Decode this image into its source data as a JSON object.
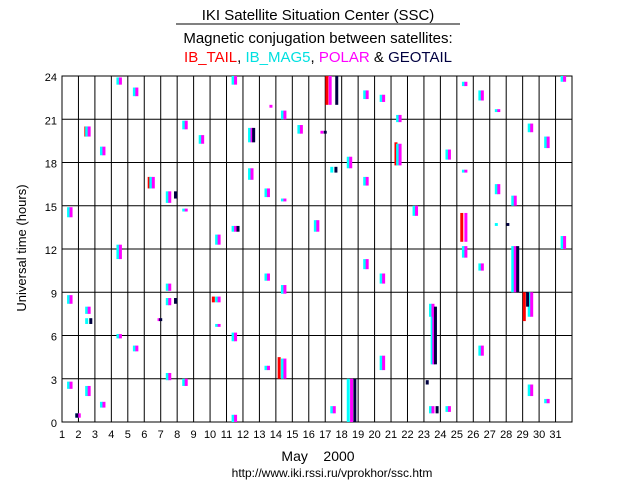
{
  "chart_data": {
    "type": "scatter",
    "title": "IKI Satellite Situation Center (SSC)",
    "subtitle": "Magnetic conjugation between satellites:",
    "legend": {
      "items": [
        {
          "label": "IB_TAIL",
          "color": "#ff0000"
        },
        {
          "label": "IB_MAG5",
          "color": "#00ffff"
        },
        {
          "label": "POLAR",
          "color": "#ff00ff"
        },
        {
          "label": "GEOTAIL",
          "color": "#000040"
        }
      ],
      "separator": ",",
      "conjunction": "&",
      "placement": "top-center"
    },
    "xlabel": "May    2000",
    "ylabel": "Universal time (hours)",
    "footer": "http://www.iki.rssi.ru/vprokhor/ssc.htm",
    "xlim": [
      1,
      32
    ],
    "ylim": [
      0,
      24
    ],
    "x_ticks": [
      "1",
      "2",
      "3",
      "4",
      "5",
      "6",
      "7",
      "8",
      "9",
      "10",
      "11",
      "12",
      "13",
      "14",
      "15",
      "16",
      "17",
      "18",
      "19",
      "20",
      "21",
      "22",
      "23",
      "24",
      "25",
      "26",
      "27",
      "28",
      "29",
      "30",
      "31"
    ],
    "y_ticks": [
      "0",
      "3",
      "6",
      "9",
      "12",
      "15",
      "18",
      "21",
      "24"
    ],
    "grid": true,
    "series": [
      {
        "name": "IB_TAIL",
        "color": "#ff0000",
        "segments": [
          {
            "x": 2.45,
            "y0": 19.8,
            "y1": 20.5
          },
          {
            "x": 6.3,
            "y0": 16.2,
            "y1": 17.0
          },
          {
            "x": 10.2,
            "y0": 8.3,
            "y1": 8.7
          },
          {
            "x": 14.2,
            "y0": 3.0,
            "y1": 4.5
          },
          {
            "x": 17.1,
            "y0": 22.0,
            "y1": 24.0
          },
          {
            "x": 21.3,
            "y0": 17.8,
            "y1": 19.4
          },
          {
            "x": 25.3,
            "y0": 12.5,
            "y1": 14.5
          },
          {
            "x": 29.1,
            "y0": 7.0,
            "y1": 9.0
          }
        ]
      },
      {
        "name": "IB_MAG5",
        "color": "#00ffff",
        "segments": [
          {
            "x": 1.4,
            "y0": 14.2,
            "y1": 14.9
          },
          {
            "x": 1.4,
            "y0": 8.2,
            "y1": 8.8
          },
          {
            "x": 1.4,
            "y0": 2.3,
            "y1": 2.8
          },
          {
            "x": 1.9,
            "y0": 0.3,
            "y1": 0.6
          },
          {
            "x": 2.5,
            "y0": 19.8,
            "y1": 20.5
          },
          {
            "x": 2.5,
            "y0": 7.5,
            "y1": 8.0
          },
          {
            "x": 2.5,
            "y0": 6.8,
            "y1": 7.2
          },
          {
            "x": 2.5,
            "y0": 1.8,
            "y1": 2.5
          },
          {
            "x": 3.4,
            "y0": 18.5,
            "y1": 19.1
          },
          {
            "x": 3.4,
            "y0": 1.0,
            "y1": 1.4
          },
          {
            "x": 4.4,
            "y0": 23.4,
            "y1": 23.9
          },
          {
            "x": 4.4,
            "y0": 11.3,
            "y1": 12.3
          },
          {
            "x": 4.4,
            "y0": 5.8,
            "y1": 6.1
          },
          {
            "x": 5.4,
            "y0": 22.6,
            "y1": 23.2
          },
          {
            "x": 5.4,
            "y0": 4.9,
            "y1": 5.3
          },
          {
            "x": 6.4,
            "y0": 16.2,
            "y1": 17.0
          },
          {
            "x": 7.4,
            "y0": 15.2,
            "y1": 16.0
          },
          {
            "x": 7.4,
            "y0": 9.1,
            "y1": 9.6
          },
          {
            "x": 7.4,
            "y0": 8.1,
            "y1": 8.6
          },
          {
            "x": 7.4,
            "y0": 2.9,
            "y1": 3.4
          },
          {
            "x": 8.4,
            "y0": 20.3,
            "y1": 20.9
          },
          {
            "x": 8.4,
            "y0": 14.6,
            "y1": 14.8
          },
          {
            "x": 8.4,
            "y0": 2.5,
            "y1": 3.0
          },
          {
            "x": 9.4,
            "y0": 19.3,
            "y1": 19.9
          },
          {
            "x": 10.4,
            "y0": 12.3,
            "y1": 13.0
          },
          {
            "x": 10.4,
            "y0": 8.3,
            "y1": 8.7
          },
          {
            "x": 10.4,
            "y0": 6.6,
            "y1": 6.8
          },
          {
            "x": 11.4,
            "y0": 23.4,
            "y1": 24.0
          },
          {
            "x": 11.4,
            "y0": 13.2,
            "y1": 13.6
          },
          {
            "x": 11.4,
            "y0": 5.6,
            "y1": 6.2
          },
          {
            "x": 11.4,
            "y0": 0.0,
            "y1": 0.5
          },
          {
            "x": 12.4,
            "y0": 16.8,
            "y1": 17.6
          },
          {
            "x": 12.4,
            "y0": 19.4,
            "y1": 20.4
          },
          {
            "x": 13.4,
            "y0": 15.6,
            "y1": 16.2
          },
          {
            "x": 13.4,
            "y0": 9.8,
            "y1": 10.3
          },
          {
            "x": 13.4,
            "y0": 3.6,
            "y1": 3.9
          },
          {
            "x": 14.4,
            "y0": 21.0,
            "y1": 21.6
          },
          {
            "x": 14.4,
            "y0": 15.3,
            "y1": 15.5
          },
          {
            "x": 14.4,
            "y0": 8.9,
            "y1": 9.5
          },
          {
            "x": 14.4,
            "y0": 3.0,
            "y1": 4.4
          },
          {
            "x": 15.4,
            "y0": 20.0,
            "y1": 20.6
          },
          {
            "x": 16.4,
            "y0": 13.2,
            "y1": 14.0
          },
          {
            "x": 17.4,
            "y0": 17.3,
            "y1": 17.7
          },
          {
            "x": 17.4,
            "y0": 0.6,
            "y1": 1.1
          },
          {
            "x": 18.4,
            "y0": 17.6,
            "y1": 18.4
          },
          {
            "x": 18.4,
            "y0": 0.0,
            "y1": 3.0
          },
          {
            "x": 19.4,
            "y0": 22.4,
            "y1": 23.0
          },
          {
            "x": 19.4,
            "y0": 16.4,
            "y1": 17.0
          },
          {
            "x": 19.4,
            "y0": 10.6,
            "y1": 11.3
          },
          {
            "x": 20.4,
            "y0": 22.2,
            "y1": 22.7
          },
          {
            "x": 20.4,
            "y0": 9.6,
            "y1": 10.3
          },
          {
            "x": 20.4,
            "y0": 3.6,
            "y1": 4.6
          },
          {
            "x": 21.4,
            "y0": 20.8,
            "y1": 21.3
          },
          {
            "x": 21.4,
            "y0": 17.8,
            "y1": 19.3
          },
          {
            "x": 22.4,
            "y0": 14.3,
            "y1": 15.0
          },
          {
            "x": 23.4,
            "y0": 7.3,
            "y1": 8.2
          },
          {
            "x": 23.4,
            "y0": 0.6,
            "y1": 1.1
          },
          {
            "x": 23.5,
            "y0": 4.0,
            "y1": 8.0
          },
          {
            "x": 24.4,
            "y0": 18.2,
            "y1": 18.9
          },
          {
            "x": 24.4,
            "y0": 0.7,
            "y1": 1.1
          },
          {
            "x": 25.4,
            "y0": 23.3,
            "y1": 23.6
          },
          {
            "x": 25.4,
            "y0": 17.3,
            "y1": 17.5
          },
          {
            "x": 25.4,
            "y0": 11.4,
            "y1": 12.2
          },
          {
            "x": 26.4,
            "y0": 22.3,
            "y1": 23.0
          },
          {
            "x": 26.4,
            "y0": 10.5,
            "y1": 11.0
          },
          {
            "x": 26.4,
            "y0": 4.6,
            "y1": 5.3
          },
          {
            "x": 27.4,
            "y0": 21.5,
            "y1": 21.7
          },
          {
            "x": 27.4,
            "y0": 15.8,
            "y1": 16.5
          },
          {
            "x": 27.4,
            "y0": 13.6,
            "y1": 13.8
          },
          {
            "x": 28.4,
            "y0": 15.0,
            "y1": 15.7
          },
          {
            "x": 28.4,
            "y0": 9.0,
            "y1": 12.2
          },
          {
            "x": 29.4,
            "y0": 20.1,
            "y1": 20.7
          },
          {
            "x": 29.4,
            "y0": 7.3,
            "y1": 9.0
          },
          {
            "x": 29.4,
            "y0": 1.8,
            "y1": 2.6
          },
          {
            "x": 30.4,
            "y0": 19.0,
            "y1": 19.8
          },
          {
            "x": 30.4,
            "y0": 1.3,
            "y1": 1.6
          },
          {
            "x": 31.4,
            "y0": 23.6,
            "y1": 24.0
          },
          {
            "x": 31.4,
            "y0": 12.0,
            "y1": 12.9
          }
        ]
      },
      {
        "name": "POLAR",
        "color": "#ff00ff",
        "segments": [
          {
            "x": 1.55,
            "y0": 14.2,
            "y1": 14.9
          },
          {
            "x": 1.55,
            "y0": 8.2,
            "y1": 8.8
          },
          {
            "x": 1.55,
            "y0": 2.3,
            "y1": 2.8
          },
          {
            "x": 2.05,
            "y0": 0.3,
            "y1": 0.6
          },
          {
            "x": 2.65,
            "y0": 19.8,
            "y1": 20.5
          },
          {
            "x": 2.65,
            "y0": 7.5,
            "y1": 8.0
          },
          {
            "x": 2.65,
            "y0": 1.8,
            "y1": 2.5
          },
          {
            "x": 3.55,
            "y0": 18.5,
            "y1": 19.1
          },
          {
            "x": 3.55,
            "y0": 1.0,
            "y1": 1.4
          },
          {
            "x": 4.55,
            "y0": 23.4,
            "y1": 23.9
          },
          {
            "x": 4.55,
            "y0": 11.3,
            "y1": 12.3
          },
          {
            "x": 4.55,
            "y0": 5.8,
            "y1": 6.1
          },
          {
            "x": 5.55,
            "y0": 22.6,
            "y1": 23.2
          },
          {
            "x": 5.55,
            "y0": 4.9,
            "y1": 5.3
          },
          {
            "x": 6.55,
            "y0": 16.2,
            "y1": 17.0
          },
          {
            "x": 6.9,
            "y0": 7.0,
            "y1": 7.2
          },
          {
            "x": 7.55,
            "y0": 15.2,
            "y1": 16.0
          },
          {
            "x": 7.55,
            "y0": 9.1,
            "y1": 9.6
          },
          {
            "x": 7.55,
            "y0": 8.1,
            "y1": 8.6
          },
          {
            "x": 7.55,
            "y0": 2.9,
            "y1": 3.4
          },
          {
            "x": 8.55,
            "y0": 20.3,
            "y1": 20.9
          },
          {
            "x": 8.55,
            "y0": 14.6,
            "y1": 14.8
          },
          {
            "x": 8.55,
            "y0": 2.5,
            "y1": 3.0
          },
          {
            "x": 9.55,
            "y0": 19.3,
            "y1": 19.9
          },
          {
            "x": 10.55,
            "y0": 12.3,
            "y1": 13.0
          },
          {
            "x": 10.55,
            "y0": 8.3,
            "y1": 8.7
          },
          {
            "x": 10.55,
            "y0": 6.6,
            "y1": 6.8
          },
          {
            "x": 11.55,
            "y0": 23.4,
            "y1": 24.0
          },
          {
            "x": 11.55,
            "y0": 13.2,
            "y1": 13.6
          },
          {
            "x": 11.55,
            "y0": 5.6,
            "y1": 6.2
          },
          {
            "x": 11.55,
            "y0": 0.0,
            "y1": 0.5
          },
          {
            "x": 12.55,
            "y0": 16.8,
            "y1": 17.6
          },
          {
            "x": 12.55,
            "y0": 19.4,
            "y1": 20.4
          },
          {
            "x": 13.55,
            "y0": 15.6,
            "y1": 16.2
          },
          {
            "x": 13.55,
            "y0": 9.8,
            "y1": 10.3
          },
          {
            "x": 13.55,
            "y0": 3.6,
            "y1": 3.9
          },
          {
            "x": 13.7,
            "y0": 21.8,
            "y1": 22.0
          },
          {
            "x": 14.55,
            "y0": 21.0,
            "y1": 21.6
          },
          {
            "x": 14.55,
            "y0": 15.3,
            "y1": 15.5
          },
          {
            "x": 14.55,
            "y0": 8.9,
            "y1": 9.5
          },
          {
            "x": 14.55,
            "y0": 3.0,
            "y1": 4.4
          },
          {
            "x": 15.55,
            "y0": 20.0,
            "y1": 20.6
          },
          {
            "x": 16.55,
            "y0": 13.2,
            "y1": 14.0
          },
          {
            "x": 16.8,
            "y0": 20.0,
            "y1": 20.2
          },
          {
            "x": 17.3,
            "y0": 22.0,
            "y1": 24.0
          },
          {
            "x": 17.55,
            "y0": 0.6,
            "y1": 1.1
          },
          {
            "x": 18.55,
            "y0": 17.6,
            "y1": 18.4
          },
          {
            "x": 18.6,
            "y0": 0.0,
            "y1": 3.0
          },
          {
            "x": 19.55,
            "y0": 22.4,
            "y1": 23.0
          },
          {
            "x": 19.55,
            "y0": 16.4,
            "y1": 17.0
          },
          {
            "x": 19.55,
            "y0": 10.6,
            "y1": 11.3
          },
          {
            "x": 20.55,
            "y0": 22.2,
            "y1": 22.7
          },
          {
            "x": 20.55,
            "y0": 9.6,
            "y1": 10.3
          },
          {
            "x": 20.55,
            "y0": 3.6,
            "y1": 4.6
          },
          {
            "x": 21.55,
            "y0": 20.8,
            "y1": 21.3
          },
          {
            "x": 21.55,
            "y0": 17.8,
            "y1": 19.3
          },
          {
            "x": 22.55,
            "y0": 14.3,
            "y1": 15.0
          },
          {
            "x": 23.55,
            "y0": 7.3,
            "y1": 8.2
          },
          {
            "x": 23.55,
            "y0": 0.6,
            "y1": 1.1
          },
          {
            "x": 23.6,
            "y0": 4.0,
            "y1": 8.0
          },
          {
            "x": 24.55,
            "y0": 18.2,
            "y1": 18.9
          },
          {
            "x": 24.55,
            "y0": 0.7,
            "y1": 1.1
          },
          {
            "x": 25.55,
            "y0": 23.3,
            "y1": 23.6
          },
          {
            "x": 25.55,
            "y0": 17.3,
            "y1": 17.5
          },
          {
            "x": 25.55,
            "y0": 12.5,
            "y1": 14.5
          },
          {
            "x": 25.55,
            "y0": 11.4,
            "y1": 12.2
          },
          {
            "x": 26.55,
            "y0": 22.3,
            "y1": 23.0
          },
          {
            "x": 26.55,
            "y0": 10.5,
            "y1": 11.0
          },
          {
            "x": 26.55,
            "y0": 4.6,
            "y1": 5.3
          },
          {
            "x": 27.55,
            "y0": 21.5,
            "y1": 21.7
          },
          {
            "x": 27.55,
            "y0": 15.8,
            "y1": 16.5
          },
          {
            "x": 28.55,
            "y0": 15.0,
            "y1": 15.7
          },
          {
            "x": 28.55,
            "y0": 9.0,
            "y1": 12.2
          },
          {
            "x": 29.55,
            "y0": 20.1,
            "y1": 20.7
          },
          {
            "x": 29.55,
            "y0": 7.3,
            "y1": 9.0
          },
          {
            "x": 29.55,
            "y0": 1.8,
            "y1": 2.6
          },
          {
            "x": 30.55,
            "y0": 19.0,
            "y1": 19.8
          },
          {
            "x": 30.55,
            "y0": 1.3,
            "y1": 1.6
          },
          {
            "x": 31.55,
            "y0": 23.6,
            "y1": 24.0
          },
          {
            "x": 31.55,
            "y0": 12.0,
            "y1": 12.9
          }
        ]
      },
      {
        "name": "GEOTAIL",
        "color": "#000040",
        "segments": [
          {
            "x": 1.9,
            "y0": 0.3,
            "y1": 0.6
          },
          {
            "x": 2.75,
            "y0": 6.8,
            "y1": 7.2
          },
          {
            "x": 7.0,
            "y0": 7.0,
            "y1": 7.2
          },
          {
            "x": 7.9,
            "y0": 15.5,
            "y1": 16.0
          },
          {
            "x": 7.9,
            "y0": 8.2,
            "y1": 8.6
          },
          {
            "x": 11.7,
            "y0": 13.2,
            "y1": 13.6
          },
          {
            "x": 12.65,
            "y0": 19.4,
            "y1": 20.4
          },
          {
            "x": 17.0,
            "y0": 20.0,
            "y1": 20.2
          },
          {
            "x": 17.7,
            "y0": 22.0,
            "y1": 24.0
          },
          {
            "x": 17.65,
            "y0": 17.3,
            "y1": 17.7
          },
          {
            "x": 18.8,
            "y0": 0.0,
            "y1": 3.0
          },
          {
            "x": 23.7,
            "y0": 4.0,
            "y1": 8.0
          },
          {
            "x": 23.2,
            "y0": 2.6,
            "y1": 2.9
          },
          {
            "x": 23.8,
            "y0": 0.6,
            "y1": 1.1
          },
          {
            "x": 28.1,
            "y0": 13.6,
            "y1": 13.8
          },
          {
            "x": 28.7,
            "y0": 9.0,
            "y1": 12.2
          },
          {
            "x": 29.3,
            "y0": 8.0,
            "y1": 9.0
          }
        ]
      }
    ]
  }
}
